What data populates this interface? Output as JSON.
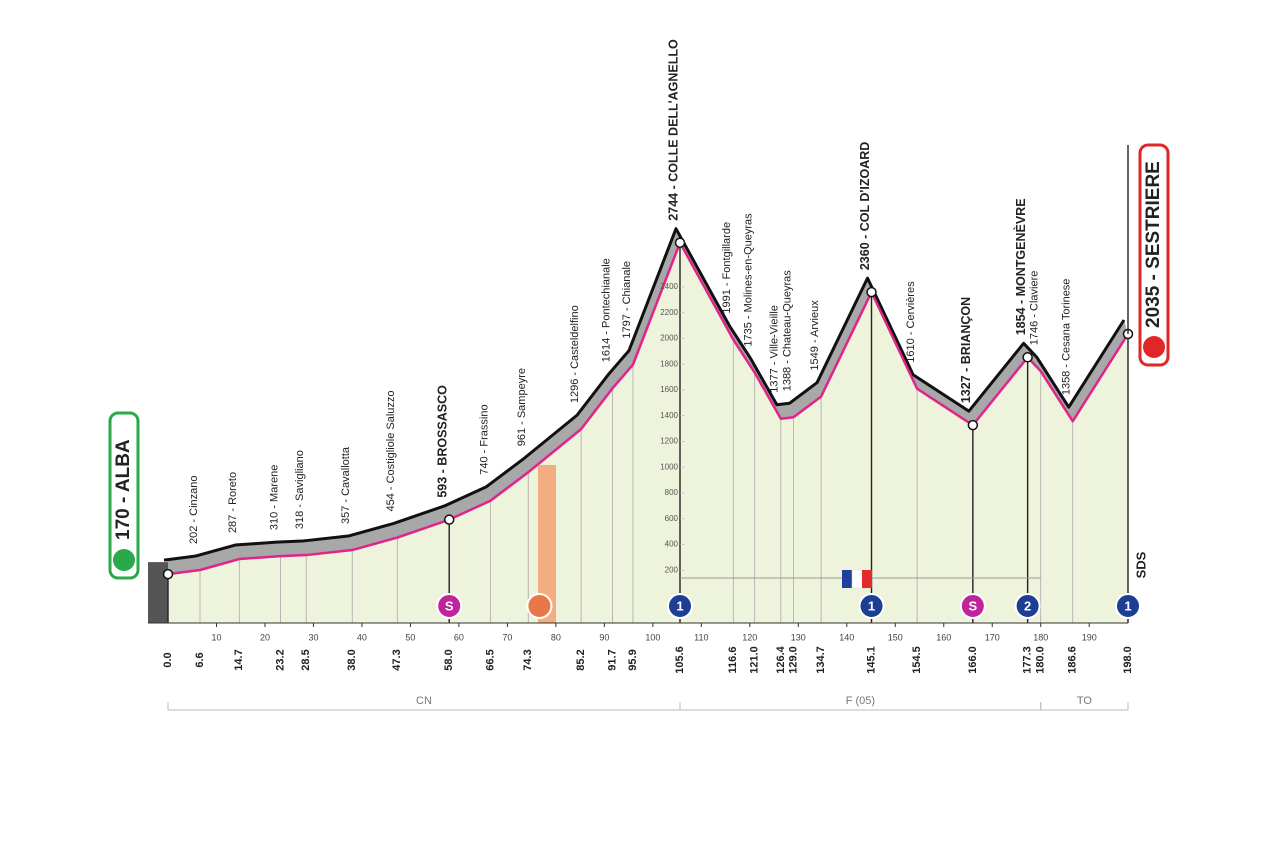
{
  "chart_data": {
    "type": "area",
    "x": [
      {
        "value": 0,
        "label": "0.0"
      },
      6.6,
      14.7,
      23.2,
      28.5,
      {
        "value": 38,
        "label": "38.0"
      },
      47.3,
      {
        "value": 58,
        "label": "58.0"
      },
      66.5,
      74.3,
      85.2,
      91.7,
      95.9,
      105.6,
      116.6,
      {
        "value": 121,
        "label": "121.0"
      },
      126.4,
      {
        "value": 129,
        "label": "129.0"
      },
      134.7,
      145.1,
      154.5,
      {
        "value": 166,
        "label": "166.0"
      },
      177.3,
      {
        "value": 180,
        "label": "180.0"
      },
      186.6,
      {
        "value": 198,
        "label": "198.0"
      }
    ],
    "values": [
      170,
      202,
      287,
      310,
      318,
      357,
      454,
      593,
      740,
      961,
      1296,
      1614,
      1797,
      2744,
      1991,
      1735,
      1377,
      1388,
      1549,
      2360,
      1610,
      1327,
      1854,
      1746,
      1358,
      2035
    ],
    "labels": [
      "170 - ALBA",
      "202 - Cinzano",
      "287 - Roreto",
      "310 - Marene",
      "318 - Savigliano",
      "357 - Cavallotta",
      "454 - Costigliole Saluzzo",
      "593 - BROSSASCO",
      "740 - Frassino",
      "961 - Sampeyre",
      "1296 - Casteldelfino",
      "1614 - Pontechianale",
      "1797 - Chianale",
      "2744 - COLLE DELL'AGNELLO",
      "1991 - Fontgillarde",
      "1735 - Molines-en-Queyras",
      "1377 - Ville-Vieille",
      "1388 - Chateau-Queyras",
      "1549 - Arvieux",
      "2360 - COL D'IZOARD",
      "1610 - Cervières",
      "1327 - BRIANÇON",
      "1854 - MONTGENÈVRE",
      "1746 - Claviere",
      "1358 - Cesana Torinese",
      "2035 - SESTRIERE"
    ],
    "color": "#e0248a",
    "xlim": [
      0,
      198
    ],
    "xticks": [
      10,
      20,
      30,
      40,
      50,
      60,
      70,
      80,
      90,
      100,
      110,
      120,
      130,
      140,
      150,
      160,
      170,
      180,
      190
    ],
    "ylim": [
      0,
      2400
    ],
    "yticks": [
      200,
      400,
      600,
      800,
      1000,
      1200,
      1400,
      1600,
      1800,
      2000,
      2200,
      2400
    ],
    "regions": [
      "CN",
      "F (05)",
      "TO"
    ],
    "badges": {
      "sprint": "S",
      "kom1": "1",
      "kom2": "2"
    },
    "logo": "SDS"
  }
}
